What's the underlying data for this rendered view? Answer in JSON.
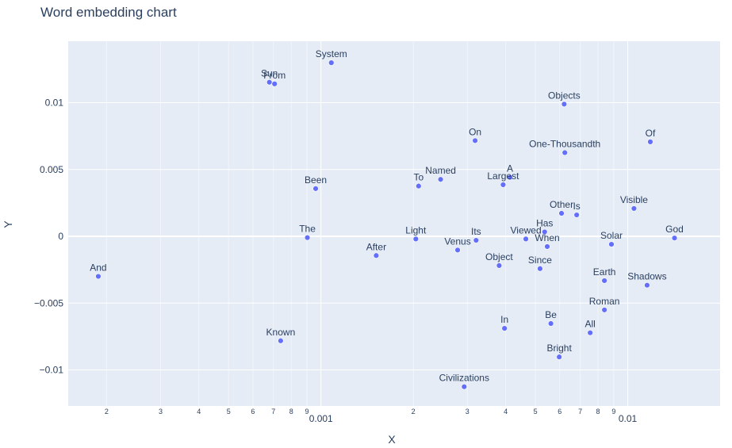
{
  "chart_data": {
    "type": "scatter",
    "title": "Word embedding chart",
    "xlabel": "X",
    "ylabel": "Y",
    "x_scale": "log",
    "xlim": [
      0.00015,
      0.02
    ],
    "ylim": [
      -0.0127,
      0.0146
    ],
    "marker_color": "#636efa",
    "plot_bgcolor": "#e5ecf6",
    "grid": true,
    "y_ticks": [
      {
        "value": 0.01,
        "label": "0.01"
      },
      {
        "value": 0.005,
        "label": "0.005"
      },
      {
        "value": 0,
        "label": "0"
      },
      {
        "value": -0.005,
        "label": "−0.005"
      },
      {
        "value": -0.01,
        "label": "−0.01"
      }
    ],
    "x_ticks_major": [
      {
        "value": 0.001,
        "label": "0.001"
      },
      {
        "value": 0.01,
        "label": "0.01"
      }
    ],
    "x_ticks_minor": [
      {
        "value": 0.0002,
        "label": "2"
      },
      {
        "value": 0.0003,
        "label": "3"
      },
      {
        "value": 0.0004,
        "label": "4"
      },
      {
        "value": 0.0005,
        "label": "5"
      },
      {
        "value": 0.0006,
        "label": "6"
      },
      {
        "value": 0.0007,
        "label": "7"
      },
      {
        "value": 0.0008,
        "label": "8"
      },
      {
        "value": 0.0009,
        "label": "9"
      },
      {
        "value": 0.002,
        "label": "2"
      },
      {
        "value": 0.003,
        "label": "3"
      },
      {
        "value": 0.004,
        "label": "4"
      },
      {
        "value": 0.005,
        "label": "5"
      },
      {
        "value": 0.006,
        "label": "6"
      },
      {
        "value": 0.007,
        "label": "7"
      },
      {
        "value": 0.008,
        "label": "8"
      },
      {
        "value": 0.009,
        "label": "9"
      }
    ],
    "points": [
      {
        "label": "And",
        "x": 0.000188,
        "y": -0.003
      },
      {
        "label": "Sun",
        "x": 0.000679,
        "y": 0.01153
      },
      {
        "label": "From",
        "x": 0.000706,
        "y": 0.01141
      },
      {
        "label": "System",
        "x": 0.001081,
        "y": 0.01299
      },
      {
        "label": "Been",
        "x": 0.000961,
        "y": 0.00357
      },
      {
        "label": "The",
        "x": 0.000903,
        "y": -0.0001
      },
      {
        "label": "Known",
        "x": 0.000739,
        "y": -0.00782
      },
      {
        "label": "After",
        "x": 0.001514,
        "y": -0.00144
      },
      {
        "label": "Light",
        "x": 0.002038,
        "y": -0.0002
      },
      {
        "label": "To",
        "x": 0.002081,
        "y": 0.00376
      },
      {
        "label": "Named",
        "x": 0.002455,
        "y": 0.00426
      },
      {
        "label": "Venus",
        "x": 0.002789,
        "y": -0.00103
      },
      {
        "label": "Its",
        "x": 0.003204,
        "y": -0.0003
      },
      {
        "label": "On",
        "x": 0.00318,
        "y": 0.00716
      },
      {
        "label": "Object",
        "x": 0.003809,
        "y": -0.00219
      },
      {
        "label": "Largest",
        "x": 0.003924,
        "y": 0.00386
      },
      {
        "label": "A",
        "x": 0.004131,
        "y": 0.00441
      },
      {
        "label": "In",
        "x": 0.003966,
        "y": -0.00689
      },
      {
        "label": "Civilizations",
        "x": 0.00293,
        "y": -0.01126
      },
      {
        "label": "Viewed",
        "x": 0.004654,
        "y": -0.0002
      },
      {
        "label": "Has",
        "x": 0.005359,
        "y": 0.00033
      },
      {
        "label": "When",
        "x": 0.005464,
        "y": -0.00077
      },
      {
        "label": "Since",
        "x": 0.005177,
        "y": -0.00242
      },
      {
        "label": "Be",
        "x": 0.005616,
        "y": -0.00653
      },
      {
        "label": "Bright",
        "x": 0.005979,
        "y": -0.00903
      },
      {
        "label": "Objects",
        "x": 0.006205,
        "y": 0.00989
      },
      {
        "label": "One-Thousandth",
        "x": 0.006236,
        "y": 0.00626
      },
      {
        "label": "Other",
        "x": 0.006084,
        "y": 0.00172
      },
      {
        "label": "Is",
        "x": 0.006816,
        "y": 0.0016
      },
      {
        "label": "All",
        "x": 0.007542,
        "y": -0.00722
      },
      {
        "label": "Roman",
        "x": 0.008393,
        "y": -0.00551
      },
      {
        "label": "Earth",
        "x": 0.008393,
        "y": -0.00332
      },
      {
        "label": "Solar",
        "x": 0.008848,
        "y": -0.0006
      },
      {
        "label": "Visible",
        "x": 0.010479,
        "y": 0.00208
      },
      {
        "label": "Of",
        "x": 0.011844,
        "y": 0.00707
      },
      {
        "label": "Shadows",
        "x": 0.011561,
        "y": -0.00366
      },
      {
        "label": "God",
        "x": 0.014205,
        "y": -0.00013
      }
    ]
  }
}
